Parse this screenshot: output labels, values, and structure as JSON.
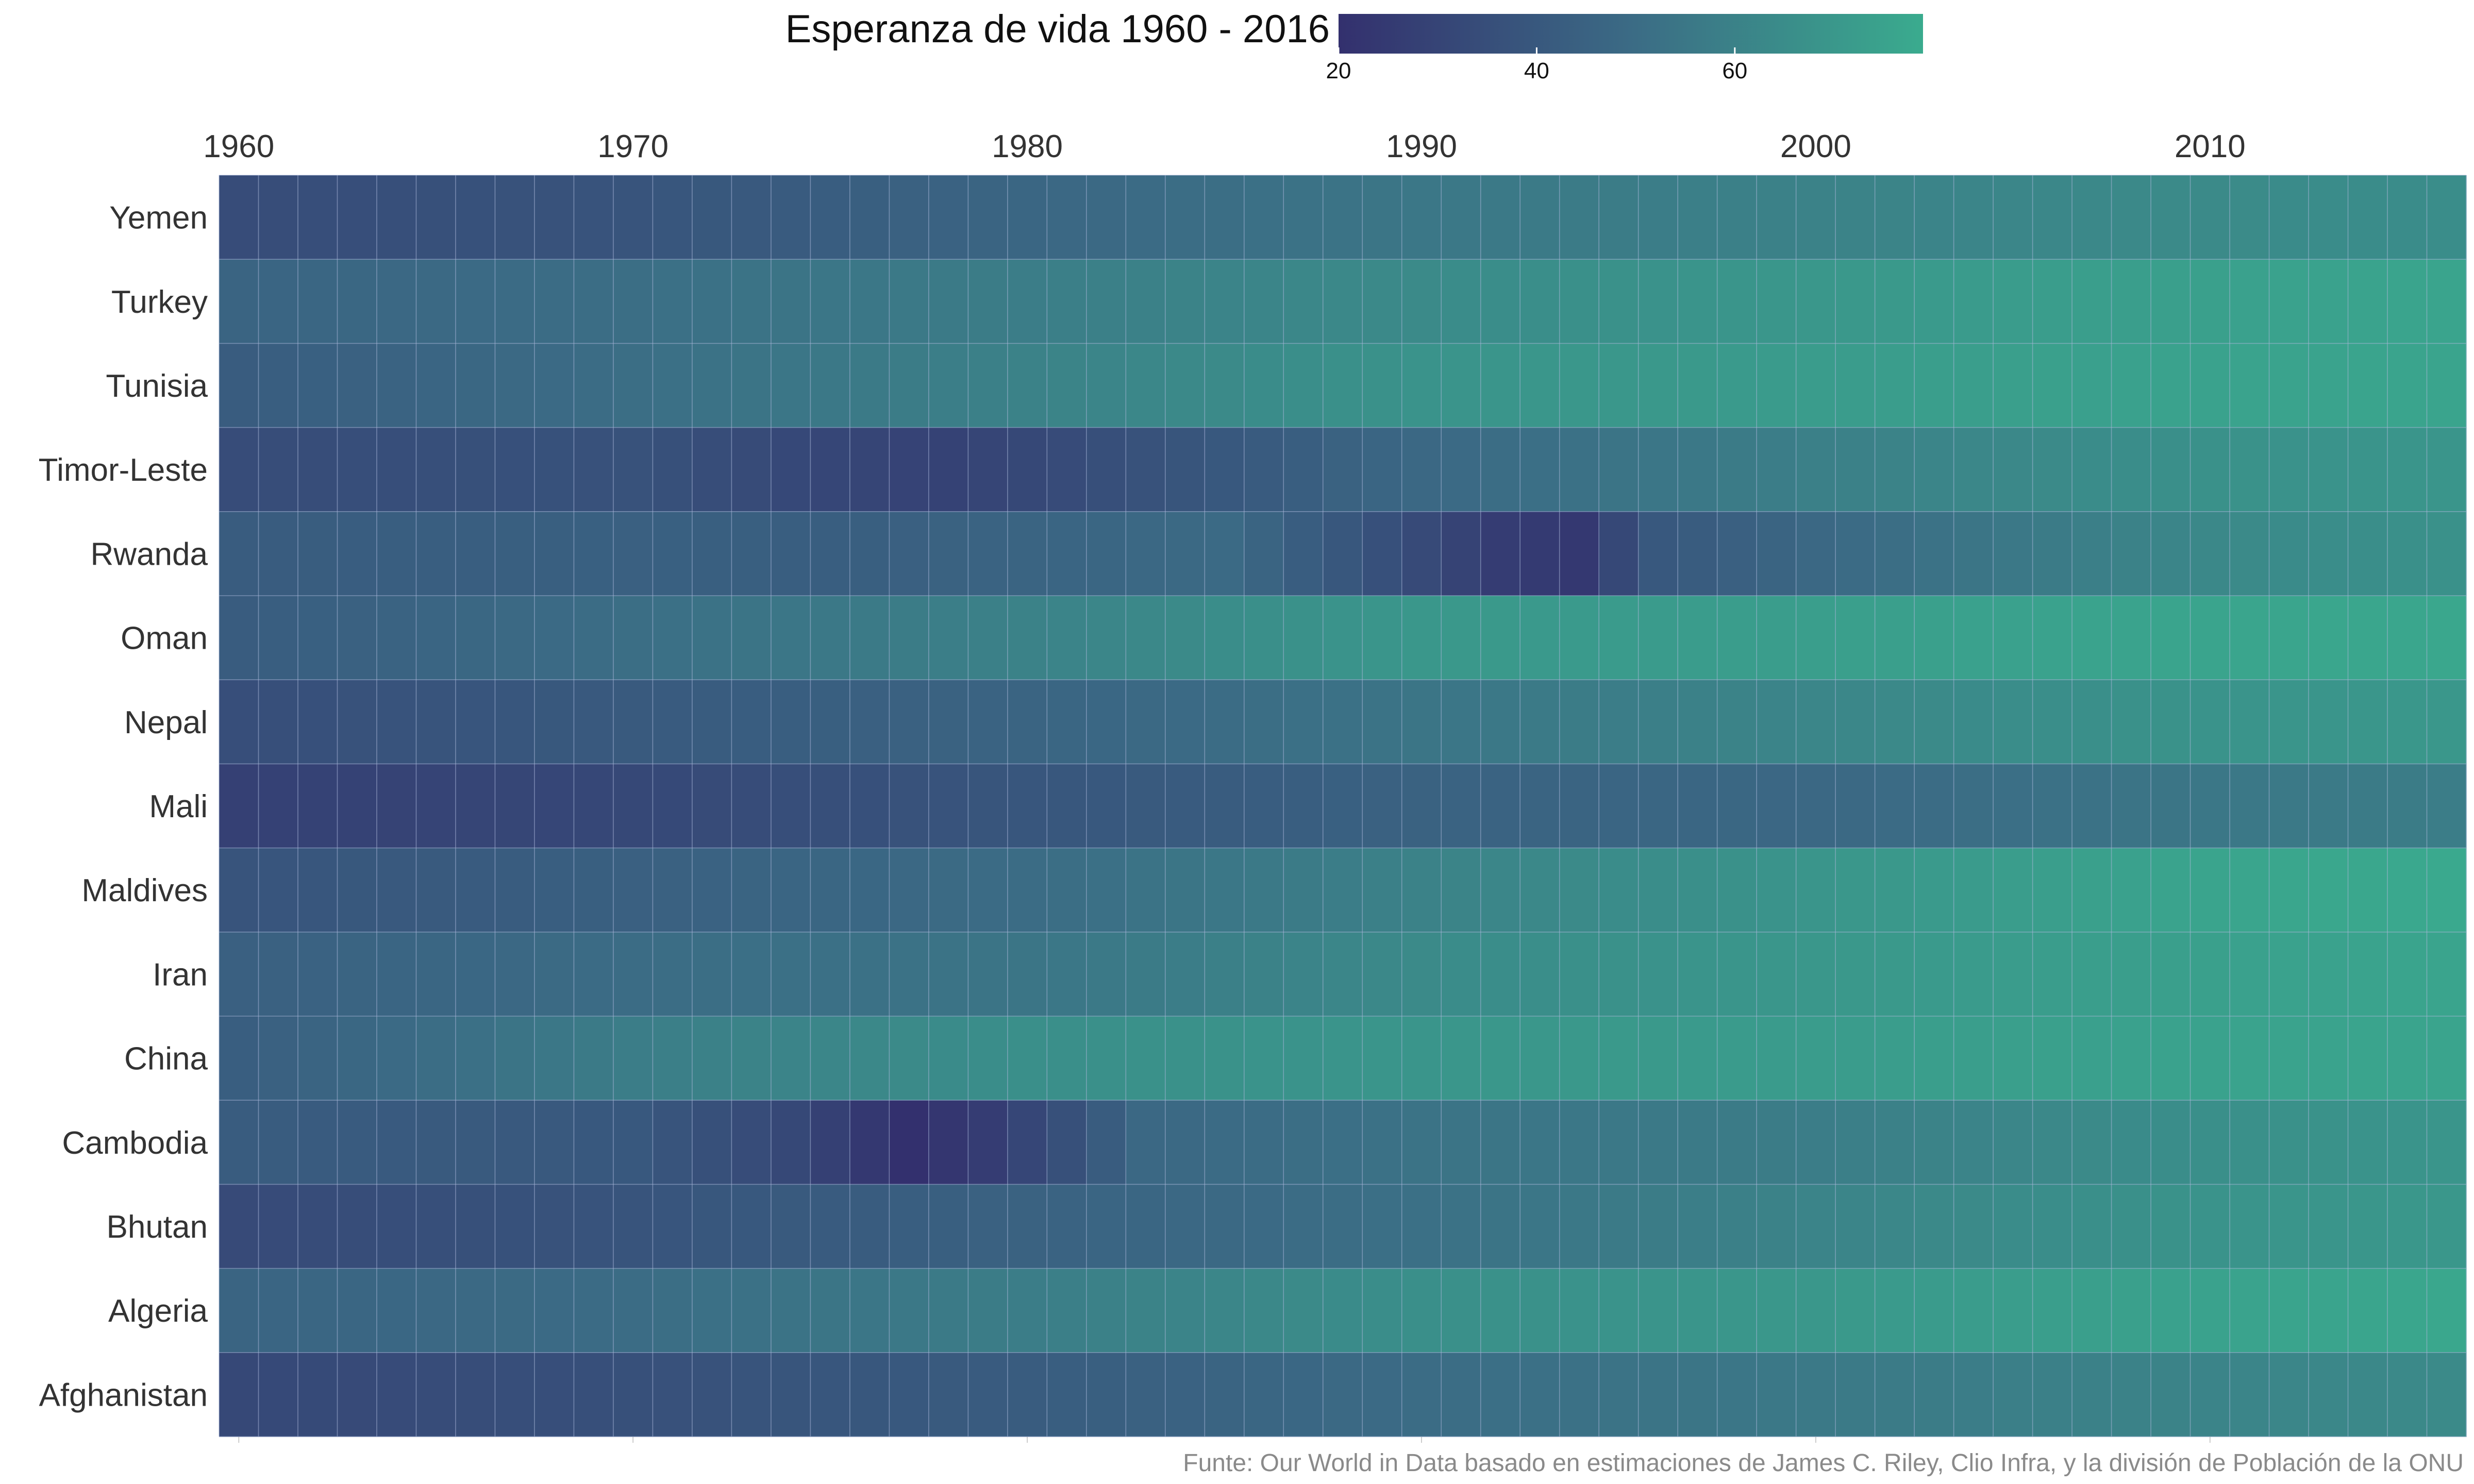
{
  "chart_data": {
    "type": "heatmap",
    "title": "Esperanza de vida 1960 - 2016",
    "caption": "Funte: Our World in Data basado en estimaciones de James C. Riley, Clio Infra, y la división de Población de la ONU",
    "x_start": 1960,
    "x_end": 2016,
    "x_ticks": [
      1960,
      1970,
      1980,
      1990,
      2000,
      2010
    ],
    "x_tick_labels": [
      "1960",
      "1970",
      "1980",
      "1990",
      "2000",
      "2010"
    ],
    "rows": [
      "Yemen",
      "Turkey",
      "Tunisia",
      "Timor-Leste",
      "Rwanda",
      "Oman",
      "Nepal",
      "Mali",
      "Maldives",
      "Iran",
      "China",
      "Cambodia",
      "Bhutan",
      "Algeria",
      "Afghanistan"
    ],
    "anchors": {
      "Yemen": [
        [
          1960,
          34
        ],
        [
          1970,
          38
        ],
        [
          1980,
          47
        ],
        [
          1990,
          55
        ],
        [
          2000,
          60
        ],
        [
          2010,
          64
        ],
        [
          2016,
          65
        ]
      ],
      "Turkey": [
        [
          1960,
          46
        ],
        [
          1970,
          51
        ],
        [
          1980,
          58
        ],
        [
          1990,
          64
        ],
        [
          2000,
          70
        ],
        [
          2010,
          74
        ],
        [
          2016,
          76
        ]
      ],
      "Tunisia": [
        [
          1960,
          42
        ],
        [
          1970,
          51
        ],
        [
          1980,
          60
        ],
        [
          1990,
          68
        ],
        [
          2000,
          72
        ],
        [
          2010,
          75
        ],
        [
          2016,
          76
        ]
      ],
      "Timor-Leste": [
        [
          1960,
          34
        ],
        [
          1970,
          37
        ],
        [
          1975,
          31
        ],
        [
          1978,
          29
        ],
        [
          1985,
          40
        ],
        [
          1990,
          48
        ],
        [
          2000,
          59
        ],
        [
          2010,
          67
        ],
        [
          2016,
          69
        ]
      ],
      "Rwanda": [
        [
          1960,
          42
        ],
        [
          1970,
          44
        ],
        [
          1975,
          43
        ],
        [
          1985,
          49
        ],
        [
          1990,
          33
        ],
        [
          1992,
          26
        ],
        [
          1994,
          24
        ],
        [
          1996,
          40
        ],
        [
          2000,
          48
        ],
        [
          2010,
          63
        ],
        [
          2016,
          67
        ]
      ],
      "Oman": [
        [
          1960,
          42
        ],
        [
          1970,
          51
        ],
        [
          1980,
          60
        ],
        [
          1990,
          70
        ],
        [
          2000,
          73
        ],
        [
          2010,
          76
        ],
        [
          2016,
          77
        ]
      ],
      "Nepal": [
        [
          1960,
          35
        ],
        [
          1970,
          41
        ],
        [
          1980,
          46
        ],
        [
          1990,
          54
        ],
        [
          2000,
          62
        ],
        [
          2010,
          68
        ],
        [
          2016,
          70
        ]
      ],
      "Mali": [
        [
          1960,
          28
        ],
        [
          1970,
          32
        ],
        [
          1980,
          39
        ],
        [
          1990,
          45
        ],
        [
          2000,
          48
        ],
        [
          2010,
          55
        ],
        [
          2016,
          58
        ]
      ],
      "Maldives": [
        [
          1960,
          38
        ],
        [
          1970,
          44
        ],
        [
          1980,
          50
        ],
        [
          1990,
          60
        ],
        [
          2000,
          69
        ],
        [
          2010,
          76
        ],
        [
          2016,
          78
        ]
      ],
      "Iran": [
        [
          1960,
          44
        ],
        [
          1970,
          50
        ],
        [
          1980,
          54
        ],
        [
          1990,
          64
        ],
        [
          2000,
          70
        ],
        [
          2010,
          74
        ],
        [
          2016,
          76
        ]
      ],
      "China": [
        [
          1960,
          43
        ],
        [
          1970,
          58
        ],
        [
          1980,
          66
        ],
        [
          1990,
          69
        ],
        [
          2000,
          72
        ],
        [
          2010,
          75
        ],
        [
          2016,
          76
        ]
      ],
      "Cambodia": [
        [
          1960,
          42
        ],
        [
          1970,
          40
        ],
        [
          1974,
          32
        ],
        [
          1977,
          20
        ],
        [
          1979,
          26
        ],
        [
          1981,
          36
        ],
        [
          1983,
          48
        ],
        [
          1990,
          53
        ],
        [
          2000,
          58
        ],
        [
          2010,
          66
        ],
        [
          2016,
          69
        ]
      ],
      "Bhutan": [
        [
          1960,
          33
        ],
        [
          1970,
          38
        ],
        [
          1980,
          45
        ],
        [
          1990,
          52
        ],
        [
          2000,
          61
        ],
        [
          2010,
          68
        ],
        [
          2016,
          70
        ]
      ],
      "Algeria": [
        [
          1960,
          46
        ],
        [
          1970,
          50
        ],
        [
          1980,
          58
        ],
        [
          1990,
          66
        ],
        [
          2000,
          70
        ],
        [
          2010,
          75
        ],
        [
          2016,
          77
        ]
      ],
      "Afghanistan": [
        [
          1960,
          32
        ],
        [
          1970,
          36
        ],
        [
          1980,
          42
        ],
        [
          1990,
          50
        ],
        [
          2000,
          56
        ],
        [
          2010,
          61
        ],
        [
          2016,
          64
        ]
      ]
    },
    "colorbar": {
      "ticks": [
        20,
        40,
        60
      ],
      "tick_labels": [
        "20",
        "40",
        "60"
      ],
      "low_value": 20,
      "high_value": 79,
      "low_color": "#33306e",
      "mid_color": "#3b6b85",
      "high_color": "#3aab8e"
    },
    "grid": true,
    "cell_border_color": "#a9b7d8",
    "legend_position": "top"
  }
}
